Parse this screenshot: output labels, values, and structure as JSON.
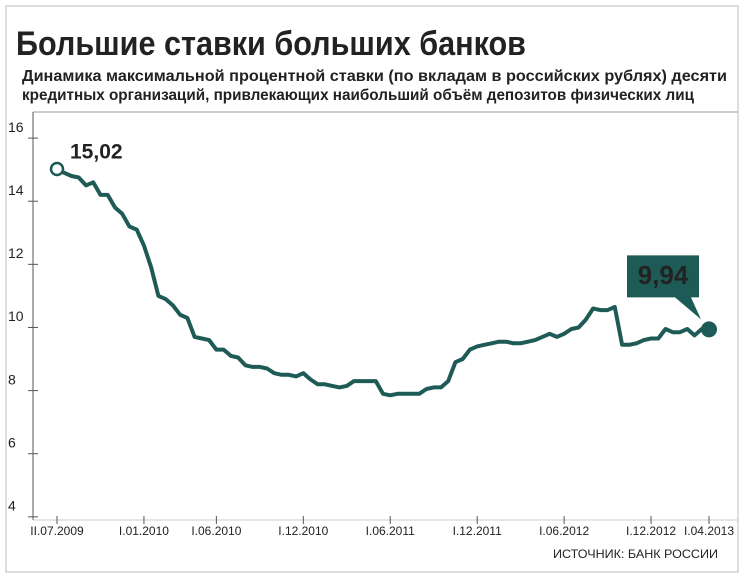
{
  "chart_data": {
    "type": "line",
    "title": "Большие ставки больших банков",
    "subtitle": [
      "Динамика максимальной процентной ставки (по вкладам в российских рублях) десяти",
      "кредитных организаций, привлекающих наибольший объём депозитов физических лиц"
    ],
    "source": "ИСТОЧНИК: БАНК РОССИИ",
    "color": "#1f5b56",
    "ylim": [
      3.9,
      16.7
    ],
    "yticks": [
      4,
      6,
      8,
      10,
      12,
      14,
      16
    ],
    "categories": [
      "II.07.2009",
      null,
      null,
      null,
      null,
      null,
      null,
      null,
      null,
      null,
      null,
      null,
      "I.01.2010",
      null,
      null,
      null,
      null,
      null,
      null,
      null,
      null,
      null,
      "I.06.2010",
      null,
      null,
      null,
      null,
      null,
      null,
      null,
      null,
      null,
      null,
      null,
      "I.12.2010",
      null,
      null,
      null,
      null,
      null,
      null,
      null,
      null,
      null,
      null,
      null,
      "I.06.2011",
      null,
      null,
      null,
      null,
      null,
      null,
      null,
      null,
      null,
      null,
      null,
      "I.12.2011",
      null,
      null,
      null,
      null,
      null,
      null,
      null,
      null,
      null,
      null,
      null,
      "I.06.2012",
      null,
      null,
      null,
      null,
      null,
      null,
      null,
      null,
      null,
      null,
      null,
      "I.12.2012",
      null,
      null,
      null,
      null,
      null,
      null,
      null,
      "I.04.2013"
    ],
    "values": [
      15.02,
      14.9,
      14.8,
      14.75,
      14.5,
      14.6,
      14.2,
      14.2,
      13.8,
      13.6,
      13.2,
      13.1,
      12.6,
      11.9,
      11.0,
      10.9,
      10.7,
      10.4,
      10.3,
      9.7,
      9.65,
      9.6,
      9.3,
      9.3,
      9.1,
      9.05,
      8.8,
      8.75,
      8.75,
      8.7,
      8.55,
      8.5,
      8.5,
      8.45,
      8.55,
      8.35,
      8.2,
      8.2,
      8.15,
      8.1,
      8.15,
      8.3,
      8.3,
      8.3,
      8.3,
      7.9,
      7.85,
      7.9,
      7.9,
      7.9,
      7.9,
      8.05,
      8.1,
      8.1,
      8.3,
      8.9,
      9.0,
      9.3,
      9.4,
      9.45,
      9.5,
      9.55,
      9.55,
      9.5,
      9.5,
      9.55,
      9.6,
      9.7,
      9.8,
      9.7,
      9.8,
      9.95,
      10.0,
      10.25,
      10.6,
      10.55,
      10.55,
      10.65,
      9.45,
      9.45,
      9.5,
      9.6,
      9.65,
      9.65,
      9.95,
      9.85,
      9.85,
      9.95,
      9.75,
      9.95,
      9.94
    ],
    "value_labels": [
      "15,02",
      null,
      null,
      null,
      null,
      null,
      null,
      null,
      null,
      null,
      null,
      null,
      null,
      null,
      null,
      null,
      null,
      null,
      null,
      null,
      null,
      null,
      null,
      null,
      null,
      null,
      null,
      null,
      null,
      null,
      null,
      null,
      null,
      null,
      null,
      null,
      null,
      null,
      null,
      null,
      null,
      null,
      null,
      null,
      null,
      null,
      null,
      null,
      null,
      null,
      null,
      null,
      null,
      null,
      null,
      null,
      null,
      null,
      null,
      null,
      null,
      null,
      null,
      null,
      null,
      null,
      null,
      null,
      null,
      null,
      null,
      null,
      null,
      null,
      null,
      null,
      null,
      null,
      null,
      null,
      null,
      null,
      null,
      null,
      null,
      null,
      null,
      null,
      null,
      null,
      "9,94"
    ]
  }
}
